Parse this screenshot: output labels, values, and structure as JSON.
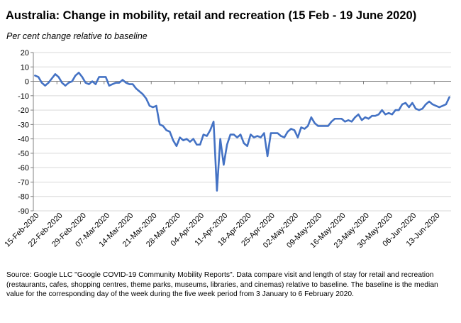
{
  "title": "Australia: Change in mobility, retail and recreation (15 Feb - 19 June 2020)",
  "subtitle": "Per cent change relative to baseline",
  "source": "Source: Google LLC \"Google COVID-19 Community Mobility Reports\".  Data compare visit and length of stay for retail and recreation (restaurants, cafes, shopping centres, theme parks, museums, libraries, and cinemas) relative to baseline.  The baseline is the median value for the corresponding day of the week during the five week period from 3 January to 6 February 2020.",
  "colors": {
    "line": "#4472C4",
    "grid": "#d9d9d9",
    "axis": "#808080"
  },
  "chart_data": {
    "type": "line",
    "title": "Australia: Change in mobility, retail and recreation (15 Feb - 19 June 2020)",
    "ylabel": "Per cent change relative to baseline",
    "xlabel": "",
    "ylim": [
      -90,
      20
    ],
    "yticks": [
      20,
      10,
      0,
      -10,
      -20,
      -30,
      -40,
      -50,
      -60,
      -70,
      -80,
      -90
    ],
    "grid": true,
    "x_tick_labels": [
      "15-Feb-2020",
      "22-Feb-2020",
      "29-Feb-2020",
      "07-Mar-2020",
      "14-Mar-2020",
      "21-Mar-2020",
      "28-Mar-2020",
      "04-Apr-2020",
      "11-Apr-2020",
      "18-Apr-2020",
      "25-Apr-2020",
      "02-May-2020",
      "09-May-2020",
      "16-May-2020",
      "23-May-2020",
      "30-May-2020",
      "06-Jun-2020",
      "13-Jun-2020"
    ],
    "x_start": "2020-02-15",
    "x_end": "2020-06-19",
    "series": [
      {
        "values": [
          4,
          3,
          -1,
          -3,
          -1,
          2,
          5,
          3,
          -1,
          -3,
          -1,
          0,
          4,
          6,
          3,
          -1,
          -2,
          0,
          -2,
          3,
          3,
          3,
          -3,
          -2,
          -1,
          -1,
          1,
          -1,
          -2,
          -2,
          -5,
          -7,
          -9,
          -12,
          -17,
          -18,
          -17,
          -30,
          -31,
          -34,
          -35,
          -41,
          -45,
          -39,
          -41,
          -40,
          -42,
          -40,
          -44,
          -44,
          -37,
          -38,
          -34,
          -28,
          -76,
          -40,
          -58,
          -44,
          -37,
          -37,
          -39,
          -37,
          -43,
          -45,
          -37,
          -39,
          -38,
          -39,
          -36,
          -52,
          -36,
          -36,
          -36,
          -38,
          -39,
          -35,
          -33,
          -34,
          -39,
          -32,
          -33,
          -31,
          -25,
          -29,
          -31,
          -31,
          -31,
          -31,
          -28,
          -26,
          -26,
          -26,
          -28,
          -27,
          -28,
          -25,
          -23,
          -27,
          -25,
          -26,
          -24,
          -24,
          -23,
          -20,
          -23,
          -22,
          -23,
          -20,
          -20,
          -16,
          -15,
          -18,
          -15,
          -19,
          -20,
          -19,
          -16,
          -14,
          -16,
          -17,
          -18,
          -17,
          -16,
          -11
        ]
      }
    ]
  }
}
